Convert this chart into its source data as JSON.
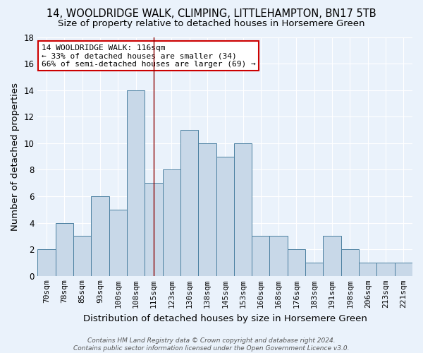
{
  "title": "14, WOOLDRIDGE WALK, CLIMPING, LITTLEHAMPTON, BN17 5TB",
  "subtitle": "Size of property relative to detached houses in Horsemere Green",
  "xlabel": "Distribution of detached houses by size in Horsemere Green",
  "ylabel": "Number of detached properties",
  "categories": [
    "70sqm",
    "78sqm",
    "85sqm",
    "93sqm",
    "100sqm",
    "108sqm",
    "115sqm",
    "123sqm",
    "130sqm",
    "138sqm",
    "145sqm",
    "153sqm",
    "160sqm",
    "168sqm",
    "176sqm",
    "183sqm",
    "191sqm",
    "198sqm",
    "206sqm",
    "213sqm",
    "221sqm"
  ],
  "values": [
    2,
    4,
    3,
    6,
    5,
    14,
    7,
    8,
    11,
    10,
    9,
    10,
    3,
    3,
    2,
    1,
    3,
    2,
    1,
    1,
    1
  ],
  "bar_color": "#c8d8e8",
  "bar_edge_color": "#4a7fa0",
  "vline_x_index": 6,
  "vline_color": "#8b0000",
  "annotation_line1": "14 WOOLDRIDGE WALK: 116sqm",
  "annotation_line2": "← 33% of detached houses are smaller (34)",
  "annotation_line3": "66% of semi-detached houses are larger (69) →",
  "annotation_box_color": "#ffffff",
  "annotation_box_edge_color": "#cc0000",
  "ylim": [
    0,
    18
  ],
  "yticks": [
    0,
    2,
    4,
    6,
    8,
    10,
    12,
    14,
    16,
    18
  ],
  "background_color": "#eaf2fb",
  "grid_color": "#ffffff",
  "footnote_line1": "Contains HM Land Registry data © Crown copyright and database right 2024.",
  "footnote_line2": "Contains public sector information licensed under the Open Government Licence v3.0.",
  "title_fontsize": 10.5,
  "subtitle_fontsize": 9.5,
  "xlabel_fontsize": 9.5,
  "ylabel_fontsize": 9.5,
  "annotation_fontsize": 8,
  "tick_fontsize": 8,
  "footnote_fontsize": 6.5
}
